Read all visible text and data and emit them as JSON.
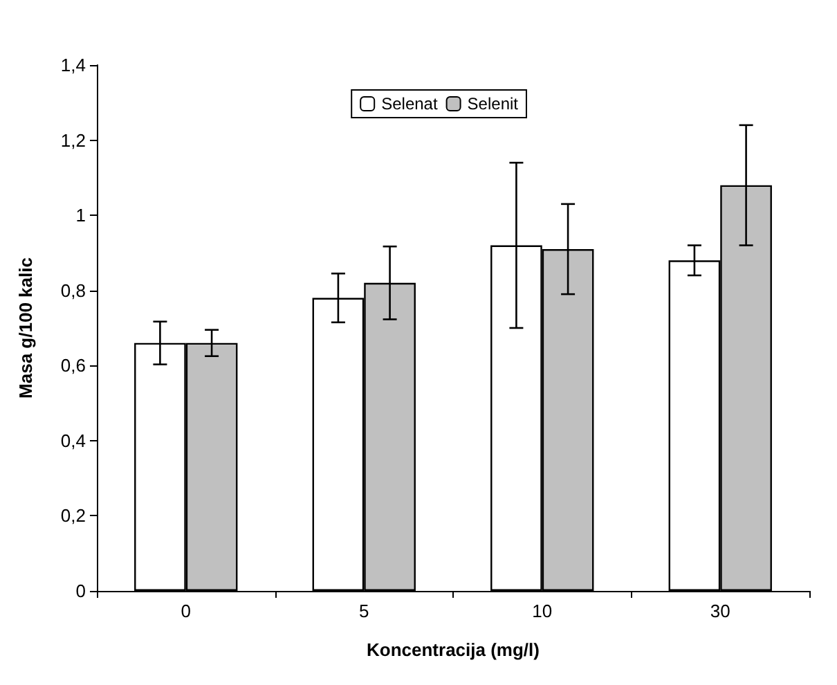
{
  "chart_data": {
    "type": "bar",
    "xlabel": "Koncentracija (mg/l)",
    "ylabel": "Masa g/100 kalic",
    "categories": [
      "0",
      "5",
      "10",
      "30"
    ],
    "series": [
      {
        "name": "Selenat",
        "color": "#ffffff",
        "values": [
          0.66,
          0.78,
          0.92,
          0.88
        ],
        "errors": [
          0.057,
          0.065,
          0.22,
          0.04
        ]
      },
      {
        "name": "Selenit",
        "color": "#c0c0c0",
        "values": [
          0.66,
          0.82,
          0.91,
          1.08
        ],
        "errors": [
          0.035,
          0.097,
          0.12,
          0.16
        ]
      }
    ],
    "ylim": [
      0,
      1.4
    ],
    "yticks": [
      0,
      {
        "value": 0.2,
        "label": "0,2"
      },
      {
        "value": 0.4,
        "label": "0,4"
      },
      {
        "value": 0.6,
        "label": "0,6"
      },
      {
        "value": 0.8,
        "label": "0,8"
      },
      1,
      {
        "value": 1.2,
        "label": "1,2"
      },
      {
        "value": 1.4,
        "label": "1,4"
      }
    ],
    "grid": false,
    "legend": "top"
  }
}
